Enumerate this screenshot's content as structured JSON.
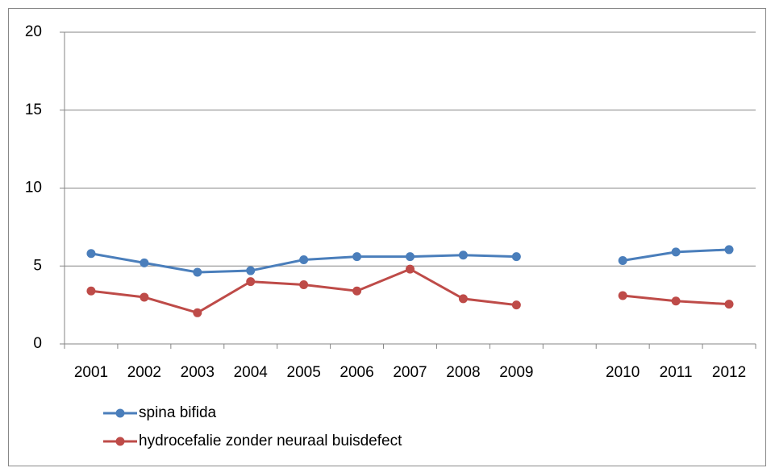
{
  "chart_data": {
    "type": "line",
    "categories": [
      "2001",
      "2002",
      "2003",
      "2004",
      "2005",
      "2006",
      "2007",
      "2008",
      "2009",
      null,
      "2010",
      "2011",
      "2012"
    ],
    "series": [
      {
        "name": "spina bifida",
        "color": "#4a7ebb",
        "values": [
          5.8,
          5.2,
          4.6,
          4.7,
          5.4,
          5.6,
          5.6,
          5.7,
          5.6,
          null,
          5.35,
          5.9,
          6.05
        ]
      },
      {
        "name": "hydrocefalie zonder neuraal buisdefect",
        "color": "#be4b48",
        "values": [
          3.4,
          3.0,
          2.0,
          4.0,
          3.8,
          3.4,
          4.8,
          2.9,
          2.5,
          null,
          3.1,
          2.75,
          2.55
        ]
      }
    ],
    "ylim": [
      0,
      20
    ],
    "yticks": [
      0,
      5,
      10,
      15,
      20
    ],
    "grid": true,
    "legend": "bottom-left"
  }
}
